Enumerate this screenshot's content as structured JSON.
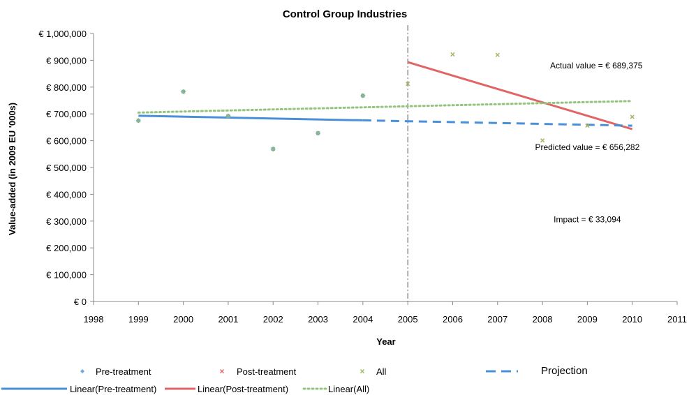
{
  "chart_data": {
    "type": "scatter",
    "title": "Control Group Industries",
    "xlabel": "Year",
    "ylabel": "Value-added (in 2009 EU '000s)",
    "xlim": [
      1998,
      2011
    ],
    "ylim": [
      0,
      1000000
    ],
    "x_ticks": [
      "1998",
      "1999",
      "2000",
      "2001",
      "2002",
      "2003",
      "2004",
      "2005",
      "2006",
      "2007",
      "2008",
      "2009",
      "2010",
      "2011"
    ],
    "y_ticks": [
      "€ 0",
      "€ 100,000",
      "€ 200,000",
      "€ 300,000",
      "€ 400,000",
      "€ 500,000",
      "€ 600,000",
      "€ 700,000",
      "€ 800,000",
      "€ 900,000",
      "€ 1,000,000"
    ],
    "grid": false,
    "treatment_year": 2005,
    "series": [
      {
        "name": "Pre-treatment",
        "marker": "diamond",
        "color": "#6fa8dc",
        "x": [
          1999,
          2000,
          2001,
          2002,
          2003,
          2004
        ],
        "y": [
          675000,
          783000,
          692000,
          569000,
          628000,
          768000
        ]
      },
      {
        "name": "Post-treatment",
        "marker": "x",
        "color": "#e06666",
        "x": [
          2005,
          2006,
          2007,
          2008,
          2009,
          2010
        ],
        "y": [
          812000,
          922000,
          920000,
          601000,
          656000,
          689000
        ]
      },
      {
        "name": "All",
        "marker": "x",
        "color": "#9bbb59",
        "x": [
          1999,
          2000,
          2001,
          2002,
          2003,
          2004,
          2005,
          2006,
          2007,
          2008,
          2009,
          2010
        ],
        "y": [
          675000,
          783000,
          692000,
          569000,
          628000,
          768000,
          812000,
          922000,
          920000,
          601000,
          656000,
          689000
        ]
      }
    ],
    "lines": [
      {
        "name": "Linear(Pre-treatment)",
        "style": "solid",
        "color": "#4a90d9",
        "x": [
          1999,
          2004
        ],
        "y": [
          693000,
          676000
        ]
      },
      {
        "name": "Linear(Post-treatment)",
        "style": "solid",
        "color": "#e06666",
        "x": [
          2005,
          2010
        ],
        "y": [
          893000,
          643000
        ]
      },
      {
        "name": "Linear(All)",
        "style": "dotted",
        "color": "#93c47d",
        "x": [
          1999,
          2010
        ],
        "y": [
          705000,
          748000
        ]
      },
      {
        "name": "Projection",
        "style": "dashed",
        "color": "#4a90d9",
        "x": [
          2004,
          2010
        ],
        "y": [
          676000,
          656000
        ]
      }
    ],
    "annotations": [
      {
        "text": "Actual value = € 689,375",
        "x": 2009.2,
        "y": 870000
      },
      {
        "text": "Predicted value = € 656,282",
        "x": 2009.0,
        "y": 565000
      },
      {
        "text": "Impact = € 33,094",
        "x": 2009.0,
        "y": 295000
      }
    ],
    "legend": {
      "placement": "bottom",
      "entries": [
        {
          "label": "Pre-treatment",
          "symbol": "diamond",
          "color": "#6fa8dc"
        },
        {
          "label": "Post-treatment",
          "symbol": "x",
          "color": "#e06666"
        },
        {
          "label": "All",
          "symbol": "x",
          "color": "#9bbb59"
        },
        {
          "label": "Projection",
          "symbol": "dashed-line",
          "color": "#4a90d9"
        },
        {
          "label": "Linear(Pre-treatment)",
          "symbol": "solid-line",
          "color": "#4a90d9"
        },
        {
          "label": "Linear(Post-treatment)",
          "symbol": "solid-line",
          "color": "#e06666"
        },
        {
          "label": "Linear(All)",
          "symbol": "dotted-line",
          "color": "#93c47d"
        }
      ]
    }
  }
}
